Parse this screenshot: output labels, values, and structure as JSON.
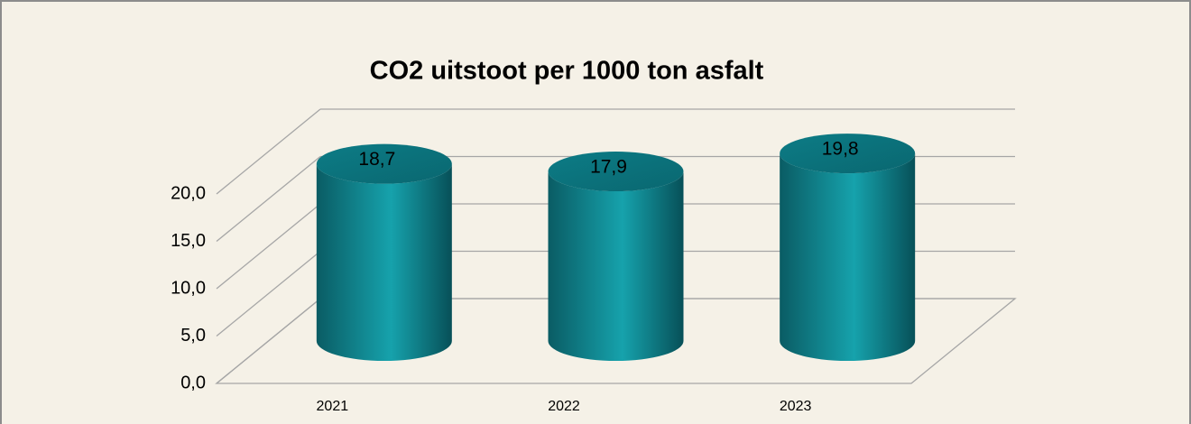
{
  "chart_data": {
    "type": "cylinder",
    "title": "CO2 uitstoot per 1000 ton asfalt",
    "categories": [
      "2021",
      "2022",
      "2023"
    ],
    "values": [
      18.7,
      17.9,
      19.8
    ],
    "value_labels": [
      "18,7",
      "17,9",
      "19,8"
    ],
    "color": "#0f8c96",
    "ylim": [
      0,
      20
    ],
    "yticks": [
      {
        "value": 0,
        "label": "0,0"
      },
      {
        "value": 5,
        "label": "5,0"
      },
      {
        "value": 10,
        "label": "10,0"
      },
      {
        "value": 15,
        "label": "15,0"
      },
      {
        "value": 20,
        "label": "20,0"
      }
    ],
    "grid": true
  }
}
